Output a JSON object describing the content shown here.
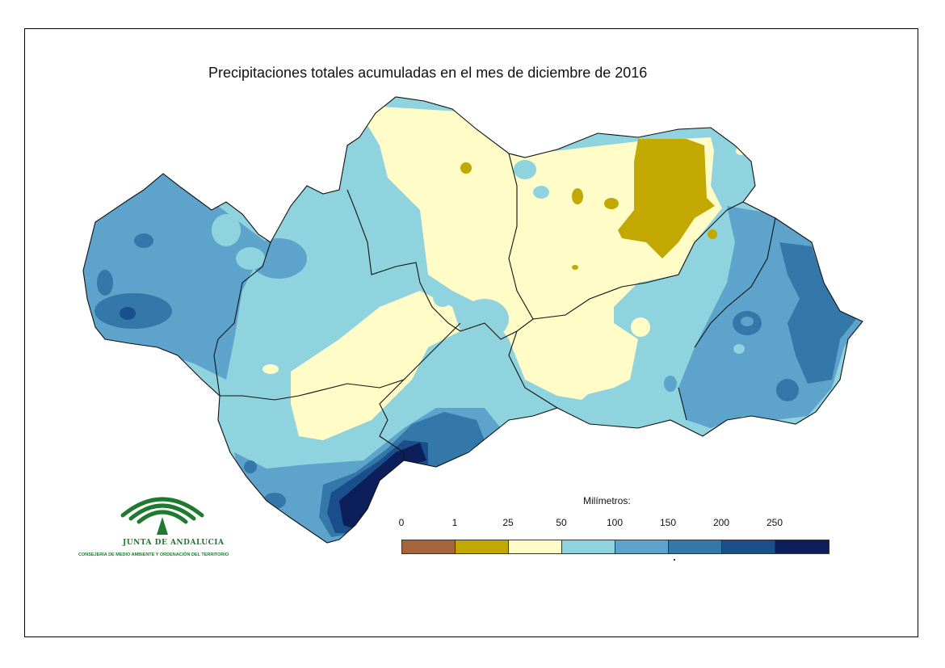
{
  "title": "Precipitaciones totales acumuladas en el mes de diciembre de 2016",
  "legend": {
    "title": "Milímetros:",
    "tick_labels": [
      "0",
      "1",
      "25",
      "50",
      "100",
      "150",
      "200",
      "250"
    ],
    "classes": [
      {
        "range": "0-1",
        "color": "#a6643a"
      },
      {
        "range": "1-25",
        "color": "#c2a800"
      },
      {
        "range": "25-50",
        "color": "#fffcc8"
      },
      {
        "range": "50-100",
        "color": "#8fd3df"
      },
      {
        "range": "100-150",
        "color": "#5ea3cc"
      },
      {
        "range": "150-200",
        "color": "#3378a8"
      },
      {
        "range": "200-250",
        "color": "#1a4f8c"
      },
      {
        "range": ">250",
        "color": "#0c1f5a"
      }
    ]
  },
  "logo": {
    "name": "JUNTA DE ANDALUCIA",
    "subtitle": "CONSEJERÍA DE MEDIO AMBIENTE Y ORDENACIÓN DEL TERRITORIO",
    "color": "#1f7a2f"
  },
  "map": {
    "region": "Andalucía",
    "dominant_class_by_area": {
      "west_huelva": "100-150",
      "north_cordoba_jaen": "25-50",
      "northeast_jaen": "1-25",
      "east_almeria": "150-200",
      "malaga_coast": ">250",
      "central": "50-100"
    }
  }
}
